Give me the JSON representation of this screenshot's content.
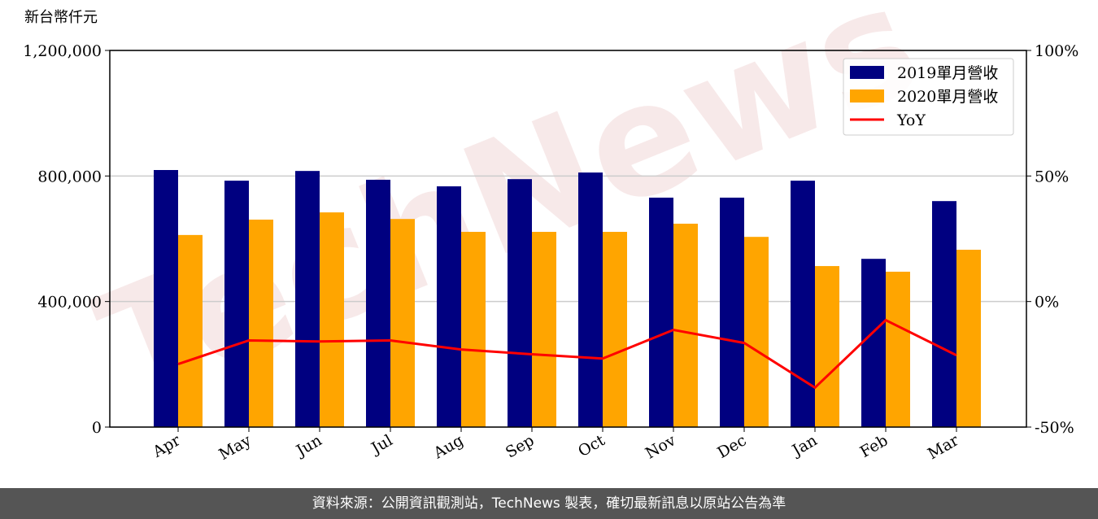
{
  "chart_data": {
    "type": "bar",
    "y_label": "新台幣仟元",
    "watermark": "TechNews",
    "categories": [
      "Apr",
      "May",
      "Jun",
      "Jul",
      "Aug",
      "Sep",
      "Oct",
      "Nov",
      "Dec",
      "Jan",
      "Feb",
      "Mar"
    ],
    "series": [
      {
        "name": "2019單月營收",
        "color": "#000080",
        "values": [
          819000,
          785000,
          816000,
          788000,
          767000,
          790000,
          811000,
          731000,
          731000,
          785000,
          536000,
          720000
        ]
      },
      {
        "name": "2020單月營收",
        "color": "#ffa500",
        "values": [
          612000,
          661000,
          684000,
          663000,
          622000,
          622000,
          622000,
          648000,
          606000,
          513000,
          495000,
          565000
        ]
      },
      {
        "name": "YoY",
        "type": "line",
        "axis": "y2",
        "color": "#ff0000",
        "values": [
          -24.9,
          -15.5,
          -15.9,
          -15.5,
          -19.1,
          -21.0,
          -22.7,
          -11.3,
          -16.5,
          -34.3,
          -7.4,
          -21.4
        ]
      }
    ],
    "ylim": [
      0,
      1200000
    ],
    "yticks": [
      {
        "value": 0,
        "label": "0"
      },
      {
        "value": 400000,
        "label": "400,000"
      },
      {
        "value": 800000,
        "label": "800,000"
      },
      {
        "value": 1200000,
        "label": "1,200,000"
      }
    ],
    "y2lim": [
      -50,
      100
    ],
    "y2ticks": [
      {
        "value": -50,
        "label": "-50%"
      },
      {
        "value": 0,
        "label": "0%"
      },
      {
        "value": 50,
        "label": "50%"
      },
      {
        "value": 100,
        "label": "100%"
      }
    ],
    "grid": true,
    "legend": "upper right",
    "footer": "資料來源：公開資訊觀測站，TechNews 製表，確切最新訊息以原站公告為準"
  }
}
